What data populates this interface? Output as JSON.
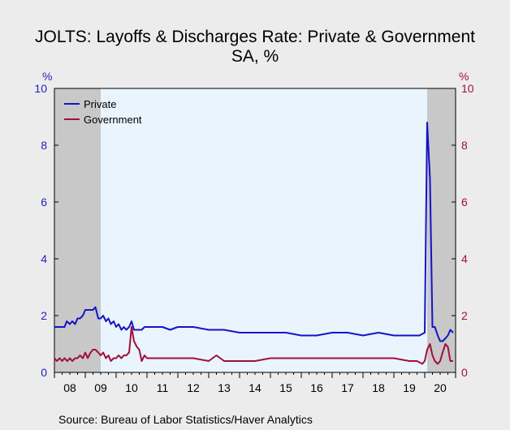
{
  "chart_data": {
    "type": "line",
    "title": "JOLTS: Layoffs & Discharges Rate: Private & Government",
    "subtitle": "SA, %",
    "y_left_unit": "%",
    "y_right_unit": "%",
    "ylim": [
      0,
      10
    ],
    "y_ticks": [
      "0",
      "2",
      "4",
      "6",
      "8",
      "10"
    ],
    "x_range": [
      2008.0,
      2021.0
    ],
    "x_tick_labels": [
      "08",
      "09",
      "10",
      "11",
      "12",
      "13",
      "14",
      "15",
      "16",
      "17",
      "18",
      "19",
      "20"
    ],
    "grid": false,
    "legend_position": "top-left",
    "recessions": [
      [
        2008.0,
        2009.5
      ],
      [
        2020.08,
        2021.0
      ]
    ],
    "source": "Source:  Bureau of Labor Statistics/Haver Analytics",
    "colors": {
      "private": "#1414c8",
      "government": "#a0103a",
      "plot_bg": "#eaf4fd",
      "recession": "#c8c8c8",
      "axis": "#000000"
    },
    "series": [
      {
        "name": "Private",
        "color": "#1414c8",
        "x": [
          2008.0,
          2008.33,
          2008.4,
          2008.5,
          2008.58,
          2008.67,
          2008.75,
          2008.83,
          2008.92,
          2009.0,
          2009.08,
          2009.17,
          2009.25,
          2009.33,
          2009.42,
          2009.5,
          2009.58,
          2009.67,
          2009.75,
          2009.83,
          2009.92,
          2010.0,
          2010.08,
          2010.17,
          2010.25,
          2010.33,
          2010.42,
          2010.5,
          2010.58,
          2010.67,
          2010.75,
          2010.83,
          2010.92,
          2011.0,
          2011.5,
          2011.75,
          2012.0,
          2012.5,
          2013.0,
          2013.5,
          2014.0,
          2014.5,
          2015.0,
          2015.5,
          2016.0,
          2016.5,
          2017.0,
          2017.5,
          2018.0,
          2018.5,
          2019.0,
          2019.5,
          2019.83,
          2020.0,
          2020.08,
          2020.17,
          2020.25,
          2020.33,
          2020.42,
          2020.5,
          2020.58,
          2020.67,
          2020.75,
          2020.83,
          2020.92
        ],
        "values": [
          1.6,
          1.6,
          1.8,
          1.7,
          1.8,
          1.7,
          1.9,
          1.9,
          2.0,
          2.2,
          2.2,
          2.2,
          2.2,
          2.3,
          1.9,
          1.9,
          2.0,
          1.8,
          1.9,
          1.7,
          1.8,
          1.6,
          1.7,
          1.5,
          1.6,
          1.5,
          1.6,
          1.8,
          1.5,
          1.5,
          1.5,
          1.5,
          1.6,
          1.6,
          1.6,
          1.5,
          1.6,
          1.6,
          1.5,
          1.5,
          1.4,
          1.4,
          1.4,
          1.4,
          1.3,
          1.3,
          1.4,
          1.4,
          1.3,
          1.4,
          1.3,
          1.3,
          1.3,
          1.4,
          8.8,
          6.8,
          1.6,
          1.6,
          1.3,
          1.1,
          1.1,
          1.2,
          1.3,
          1.5,
          1.4
        ]
      },
      {
        "name": "Government",
        "color": "#a0103a",
        "x": [
          2008.0,
          2008.08,
          2008.17,
          2008.25,
          2008.33,
          2008.42,
          2008.5,
          2008.58,
          2008.67,
          2008.75,
          2008.83,
          2008.92,
          2009.0,
          2009.08,
          2009.17,
          2009.25,
          2009.33,
          2009.42,
          2009.5,
          2009.58,
          2009.67,
          2009.75,
          2009.83,
          2009.92,
          2010.0,
          2010.08,
          2010.17,
          2010.25,
          2010.33,
          2010.42,
          2010.5,
          2010.58,
          2010.67,
          2010.75,
          2010.83,
          2010.92,
          2011.0,
          2011.5,
          2012.0,
          2012.5,
          2013.0,
          2013.25,
          2013.5,
          2014.0,
          2014.5,
          2015.0,
          2015.5,
          2016.0,
          2016.5,
          2017.0,
          2017.5,
          2018.0,
          2018.5,
          2019.0,
          2019.5,
          2019.75,
          2019.92,
          2020.0,
          2020.08,
          2020.17,
          2020.25,
          2020.33,
          2020.42,
          2020.5,
          2020.58,
          2020.67,
          2020.75,
          2020.83,
          2020.92
        ],
        "values": [
          0.5,
          0.4,
          0.5,
          0.4,
          0.5,
          0.4,
          0.5,
          0.4,
          0.5,
          0.5,
          0.6,
          0.5,
          0.7,
          0.5,
          0.7,
          0.8,
          0.8,
          0.7,
          0.6,
          0.7,
          0.5,
          0.6,
          0.4,
          0.5,
          0.5,
          0.6,
          0.5,
          0.6,
          0.6,
          0.7,
          1.6,
          1.1,
          0.9,
          0.8,
          0.4,
          0.6,
          0.5,
          0.5,
          0.5,
          0.5,
          0.4,
          0.6,
          0.4,
          0.4,
          0.4,
          0.5,
          0.5,
          0.5,
          0.5,
          0.5,
          0.5,
          0.5,
          0.5,
          0.5,
          0.4,
          0.4,
          0.3,
          0.4,
          0.8,
          1.0,
          0.6,
          0.4,
          0.3,
          0.4,
          0.7,
          1.0,
          0.9,
          0.4,
          0.4
        ]
      }
    ]
  }
}
